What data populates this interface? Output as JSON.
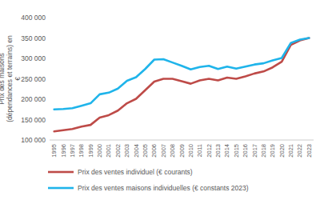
{
  "chart_data": {
    "type": "line",
    "y_label": "Prix des maisons (dépendances et terrains) en €",
    "categories": [
      "1995",
      "1996",
      "1997",
      "1998",
      "1999",
      "2000",
      "2001",
      "2002",
      "2003",
      "2004",
      "2005",
      "2006",
      "2007",
      "2008",
      "2009",
      "2010",
      "2011",
      "2012",
      "2013",
      "2014",
      "2015",
      "2016",
      "2017",
      "2018",
      "2019",
      "2020",
      "2021",
      "2022",
      "2023"
    ],
    "series": [
      {
        "name": "Prix des ventes individuel (€ courants)",
        "color": "#be4b48",
        "values": [
          121000,
          124000,
          127000,
          133000,
          137000,
          155000,
          161000,
          172000,
          190000,
          201000,
          222000,
          243000,
          250000,
          250000,
          244000,
          238000,
          246000,
          250000,
          246000,
          253000,
          250000,
          256000,
          263000,
          268000,
          278000,
          292000,
          333000,
          344000,
          350000
        ]
      },
      {
        "name": "Prix des ventes maisons individuelles (€ constants 2023)",
        "color": "#1fb4ea",
        "values": [
          175000,
          176000,
          178000,
          184000,
          190000,
          212000,
          216000,
          226000,
          245000,
          254000,
          274000,
          297000,
          298000,
          290000,
          282000,
          273000,
          279000,
          282000,
          274000,
          280000,
          275000,
          280000,
          285000,
          288000,
          295000,
          301000,
          338000,
          346000,
          350000
        ]
      }
    ],
    "ylim": [
      100000,
      400000
    ],
    "yticks": [
      {
        "value": 100000,
        "label": "100 000"
      },
      {
        "value": 150000,
        "label": "150 000"
      },
      {
        "value": 200000,
        "label": "200 000"
      },
      {
        "value": 250000,
        "label": "250 000"
      },
      {
        "value": 300000,
        "label": "300 000"
      },
      {
        "value": 350000,
        "label": "350 000"
      },
      {
        "value": 400000,
        "label": "400 000"
      }
    ],
    "grid": false,
    "legend": "bottom"
  }
}
